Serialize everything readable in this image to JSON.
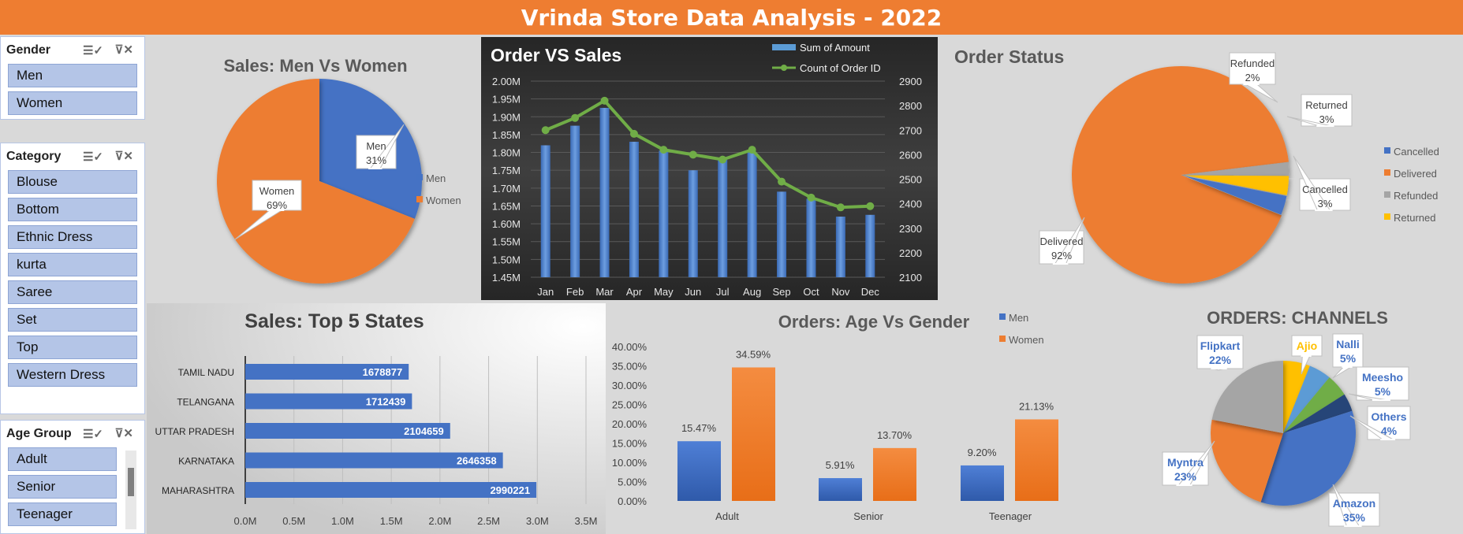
{
  "title": "Vrinda Store Data Analysis - 2022",
  "slicers": {
    "gender": {
      "header": "Gender",
      "items": [
        "Men",
        "Women"
      ]
    },
    "category": {
      "header": "Category",
      "items": [
        "Blouse",
        "Bottom",
        "Ethnic Dress",
        "kurta",
        "Saree",
        "Set",
        "Top",
        "Western Dress"
      ]
    },
    "age_group": {
      "header": "Age Group",
      "items": [
        "Adult",
        "Senior",
        "Teenager"
      ]
    }
  },
  "icons": {
    "multiselect": "multi-select-icon",
    "clear_filter": "clear-filter-icon"
  },
  "colors": {
    "header": "#ee7d31",
    "blue": "#4472c4",
    "orange": "#ed7d31",
    "gray": "#a5a5a5",
    "yellow": "#ffc000",
    "green": "#70ad47",
    "navy": "#264478",
    "bar_blue": "#5b9bd5"
  },
  "chart_data": [
    {
      "type": "pie",
      "title": "Sales: Men Vs Women",
      "categories": [
        "Men",
        "Women"
      ],
      "values": [
        31,
        69
      ],
      "labels": [
        "31%",
        "69%"
      ],
      "legend": "right"
    },
    {
      "type": "bar",
      "title": "Order VS Sales",
      "categories": [
        "Jan",
        "Feb",
        "Mar",
        "Apr",
        "May",
        "Jun",
        "Jul",
        "Aug",
        "Sep",
        "Oct",
        "Nov",
        "Dec"
      ],
      "series": [
        {
          "name": "Sum of Amount",
          "axis": "left",
          "values": [
            1.82,
            1.875,
            1.925,
            1.83,
            1.805,
            1.75,
            1.78,
            1.8,
            1.69,
            1.67,
            1.62,
            1.625
          ]
        },
        {
          "name": "Count of Order ID",
          "axis": "right",
          "type": "line",
          "values": [
            2700,
            2750,
            2820,
            2685,
            2620,
            2600,
            2580,
            2620,
            2490,
            2425,
            2385,
            2390
          ]
        }
      ],
      "yticks_left": [
        "2.00M",
        "1.95M",
        "1.90M",
        "1.85M",
        "1.80M",
        "1.75M",
        "1.70M",
        "1.65M",
        "1.60M",
        "1.55M",
        "1.50M",
        "1.45M"
      ],
      "yticks_right": [
        "2900",
        "2800",
        "2700",
        "2600",
        "2500",
        "2400",
        "2300",
        "2200",
        "2100"
      ],
      "ylim_left": [
        1.45,
        2.0
      ],
      "ylim_right": [
        2100,
        2900
      ],
      "legend": "top-right"
    },
    {
      "type": "pie",
      "title": "Order Status",
      "categories": [
        "Cancelled",
        "Delivered",
        "Refunded",
        "Returned"
      ],
      "values": [
        3,
        92,
        2,
        3
      ],
      "labels": [
        "Cancelled\n3%",
        "Delivered\n92%",
        "Refunded\n2%",
        "Returned\n3%"
      ],
      "legend": "right"
    },
    {
      "type": "bar",
      "orientation": "horizontal",
      "title": "Sales: Top 5 States",
      "categories": [
        "TAMIL NADU",
        "TELANGANA",
        "UTTAR PRADESH",
        "KARNATAKA",
        "MAHARASHTRA"
      ],
      "values": [
        1678877,
        1712439,
        2104659,
        2646358,
        2990221
      ],
      "xticks": [
        "0.0M",
        "0.5M",
        "1.0M",
        "1.5M",
        "2.0M",
        "2.5M",
        "3.0M",
        "3.5M"
      ],
      "xlim": [
        0,
        3500000
      ]
    },
    {
      "type": "bar",
      "title": "Orders: Age Vs Gender",
      "categories": [
        "Adult",
        "Senior",
        "Teenager"
      ],
      "series": [
        {
          "name": "Men",
          "values": [
            15.47,
            5.91,
            9.2
          ],
          "labels": [
            "15.47%",
            "5.91%",
            "9.20%"
          ]
        },
        {
          "name": "Women",
          "values": [
            34.59,
            13.7,
            21.13
          ],
          "labels": [
            "34.59%",
            "13.70%",
            "21.13%"
          ]
        }
      ],
      "yticks": [
        "40.00%",
        "35.00%",
        "30.00%",
        "25.00%",
        "20.00%",
        "15.00%",
        "10.00%",
        "5.00%",
        "0.00%"
      ],
      "ylim": [
        0,
        40
      ],
      "legend": "top-right"
    },
    {
      "type": "pie",
      "title": "ORDERS: CHANNELS",
      "categories": [
        "Amazon",
        "Myntra",
        "Flipkart",
        "Ajio",
        "Nalli",
        "Meesho",
        "Others"
      ],
      "values": [
        35,
        23,
        22,
        6,
        5,
        5,
        4
      ],
      "labels": [
        "Amazon\n35%",
        "Myntra\n23%",
        "Flipkart\n22%",
        "Ajio",
        "Nalli\n5%",
        "Meesho\n5%",
        "Others\n4%"
      ]
    }
  ]
}
